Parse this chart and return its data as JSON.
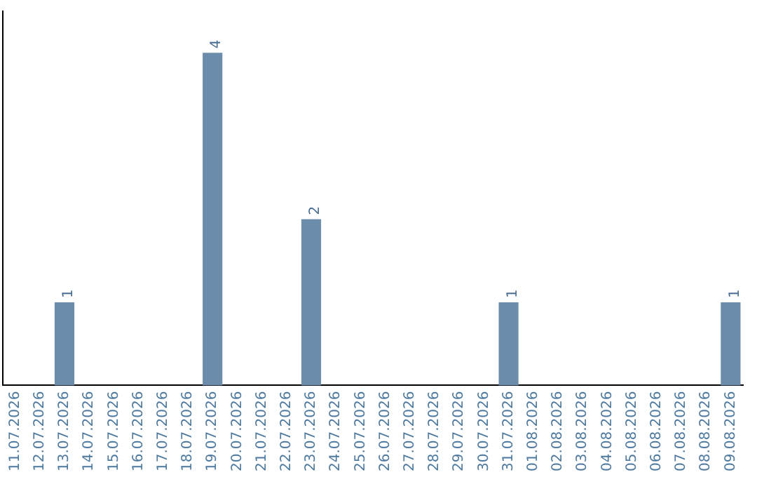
{
  "chart_data": {
    "type": "bar",
    "categories": [
      "11.07.2026",
      "12.07.2026",
      "13.07.2026",
      "14.07.2026",
      "15.07.2026",
      "16.07.2026",
      "17.07.2026",
      "18.07.2026",
      "19.07.2026",
      "20.07.2026",
      "21.07.2026",
      "22.07.2026",
      "23.07.2026",
      "24.07.2026",
      "25.07.2026",
      "26.07.2026",
      "27.07.2026",
      "28.07.2026",
      "29.07.2026",
      "30.07.2026",
      "31.07.2026",
      "01.08.2026",
      "02.08.2026",
      "03.08.2026",
      "04.08.2026",
      "05.08.2026",
      "06.08.2026",
      "07.08.2026",
      "08.08.2026",
      "09.08.2026"
    ],
    "values": [
      null,
      null,
      1,
      null,
      null,
      null,
      null,
      null,
      4,
      null,
      null,
      null,
      2,
      null,
      null,
      null,
      null,
      null,
      null,
      null,
      1,
      null,
      null,
      null,
      null,
      null,
      null,
      null,
      null,
      1
    ],
    "color": "#6b8cab",
    "data_labels": true,
    "grid": false,
    "legend": false,
    "tick_labels": "x"
  }
}
